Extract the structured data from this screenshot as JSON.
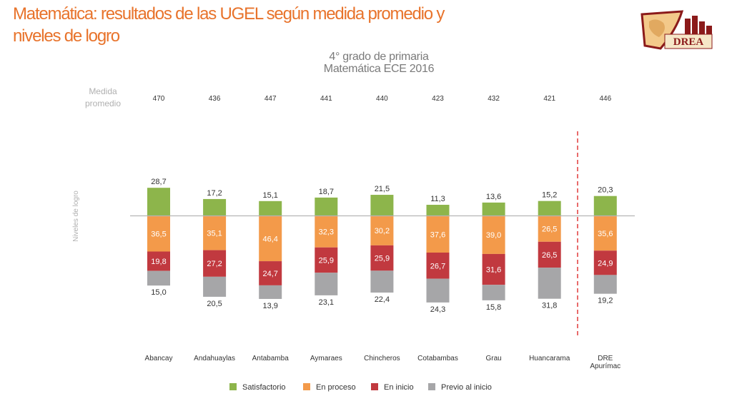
{
  "slide": {
    "title": "Matemática: resultados de las UGEL según medida promedio y niveles de logro",
    "subtitle_line1": "4° grado de primaria",
    "subtitle_line2": "Matemática ECE 2016",
    "logo_text": "DREA"
  },
  "colors": {
    "title": "#e8732b",
    "satisfactorio": "#8db54b",
    "en_proceso": "#f39a4a",
    "en_inicio": "#c1393f",
    "previo": "#a6a6a8",
    "divider": "#e03a3a"
  },
  "chart_data": {
    "type": "bar",
    "subtype": "diverging-stacked",
    "title": "4° grado de primaria Matemática ECE 2016",
    "ylabel": "Niveles de logro",
    "mean_label_line1": "Medida",
    "mean_label_line2": "promedio",
    "categories": [
      [
        "Abancay"
      ],
      [
        "Andahuaylas"
      ],
      [
        "Antabamba"
      ],
      [
        "Aymaraes"
      ],
      [
        "Chincheros"
      ],
      [
        "Cotabambas"
      ],
      [
        "Grau"
      ],
      [
        "Huancarama"
      ],
      [
        "DRE",
        "Apurímac"
      ]
    ],
    "medida_promedio": [
      "470",
      "436",
      "447",
      "441",
      "440",
      "423",
      "432",
      "421",
      "446"
    ],
    "series": [
      {
        "name": "Satisfactorio",
        "direction": "up",
        "values": [
          28.7,
          17.2,
          15.1,
          18.7,
          21.5,
          11.3,
          13.6,
          15.2,
          20.3
        ],
        "labels": [
          "28,7",
          "17,2",
          "15,1",
          "18,7",
          "21,5",
          "11,3",
          "13,6",
          "15,2",
          "20,3"
        ]
      },
      {
        "name": "En proceso",
        "direction": "down",
        "values": [
          36.5,
          35.1,
          46.4,
          32.3,
          30.2,
          37.6,
          39.0,
          26.5,
          35.6
        ],
        "labels": [
          "36,5",
          "35,1",
          "46,4",
          "32,3",
          "30,2",
          "37,6",
          "39,0",
          "26,5",
          "35,6"
        ]
      },
      {
        "name": "En inicio",
        "direction": "down",
        "values": [
          19.8,
          27.2,
          24.7,
          25.9,
          25.9,
          26.7,
          31.6,
          26.5,
          24.9
        ],
        "labels": [
          "19,8",
          "27,2",
          "24,7",
          "25,9",
          "25,9",
          "26,7",
          "31,6",
          "26,5",
          "24,9"
        ]
      },
      {
        "name": "Previo al inicio",
        "direction": "down",
        "values": [
          15.0,
          20.5,
          13.9,
          23.1,
          22.4,
          24.3,
          15.8,
          31.8,
          19.2
        ],
        "labels": [
          "15,0",
          "20,5",
          "13,9",
          "23,1",
          "22,4",
          "24,3",
          "15,8",
          "31,8",
          "19,2"
        ]
      }
    ],
    "legend": [
      "Satisfactorio",
      "En proceso",
      "En inicio",
      "Previo al inicio"
    ],
    "legend_position": "bottom",
    "reference_divider": "before-last-category"
  }
}
